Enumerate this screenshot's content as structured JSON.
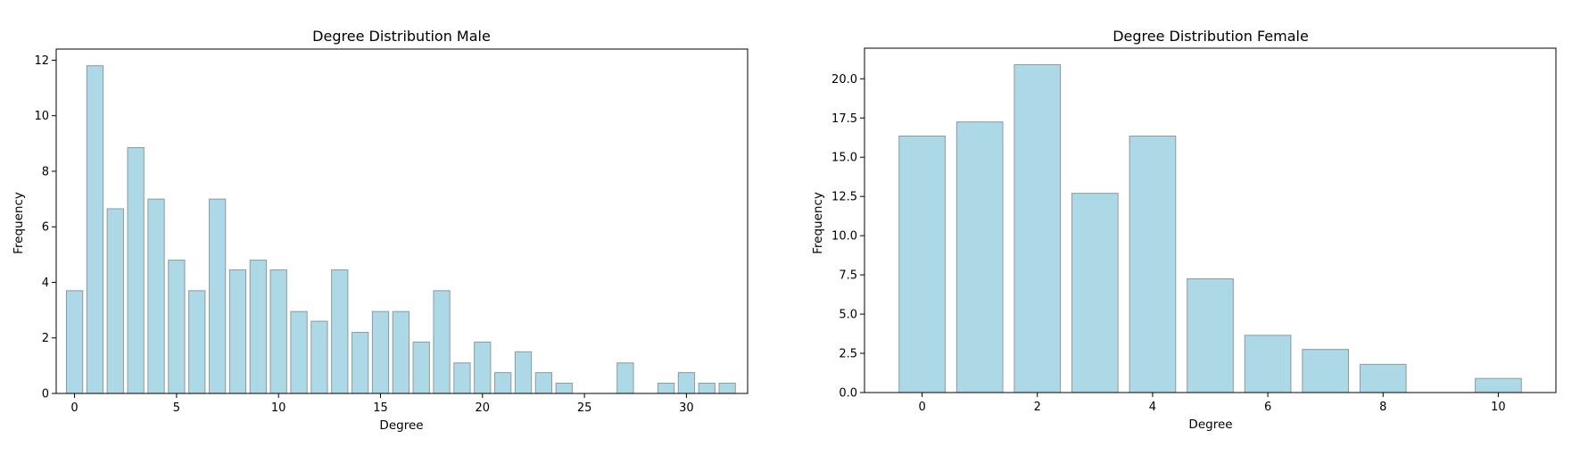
{
  "colors": {
    "bar_fill": "#add8e6",
    "bar_edge": "#8a9ba3",
    "axis": "#000000"
  },
  "chart_data": [
    {
      "type": "bar",
      "title": "Degree Distribution Male",
      "xlabel": "Degree",
      "ylabel": "Frequency",
      "x": [
        0,
        1,
        2,
        3,
        4,
        5,
        6,
        7,
        8,
        9,
        10,
        11,
        12,
        13,
        14,
        15,
        16,
        17,
        18,
        19,
        20,
        21,
        22,
        23,
        24,
        25,
        26,
        27,
        28,
        29,
        30,
        31,
        32
      ],
      "values": [
        3.7,
        11.8,
        6.65,
        8.85,
        7.0,
        4.8,
        3.7,
        7.0,
        4.45,
        4.8,
        4.45,
        2.95,
        2.6,
        4.45,
        2.2,
        2.95,
        2.95,
        1.85,
        3.7,
        1.1,
        1.85,
        0.75,
        1.5,
        0.75,
        0.37,
        0,
        0,
        1.1,
        0,
        0.37,
        0.75,
        0.37,
        0.37
      ],
      "xlim": [
        -0.9,
        33.0
      ],
      "ylim": [
        0,
        12.4
      ],
      "xticks": [
        0,
        5,
        10,
        15,
        20,
        25,
        30
      ],
      "xtick_labels": [
        "0",
        "5",
        "10",
        "15",
        "20",
        "25",
        "30"
      ],
      "yticks": [
        0,
        2,
        4,
        6,
        8,
        10,
        12
      ],
      "ytick_labels": [
        "0",
        "2",
        "4",
        "6",
        "8",
        "10",
        "12"
      ],
      "grid": false,
      "legend": "none"
    },
    {
      "type": "bar",
      "title": "Degree Distribution Female",
      "xlabel": "Degree",
      "ylabel": "Frequency",
      "x": [
        0,
        1,
        2,
        3,
        4,
        5,
        6,
        7,
        8,
        9,
        10
      ],
      "values": [
        16.35,
        17.25,
        20.9,
        12.7,
        16.35,
        7.25,
        3.65,
        2.75,
        1.8,
        0,
        0.9
      ],
      "xlim": [
        -1.0,
        11.0
      ],
      "ylim": [
        0,
        21.95
      ],
      "xticks": [
        0,
        2,
        4,
        6,
        8,
        10
      ],
      "xtick_labels": [
        "0",
        "2",
        "4",
        "6",
        "8",
        "10"
      ],
      "yticks": [
        0,
        2.5,
        5,
        7.5,
        10,
        12.5,
        15,
        17.5,
        20
      ],
      "ytick_labels": [
        "0.0",
        "2.5",
        "5.0",
        "7.5",
        "10.0",
        "12.5",
        "15.0",
        "17.5",
        "20.0"
      ],
      "grid": false,
      "legend": "none"
    }
  ]
}
